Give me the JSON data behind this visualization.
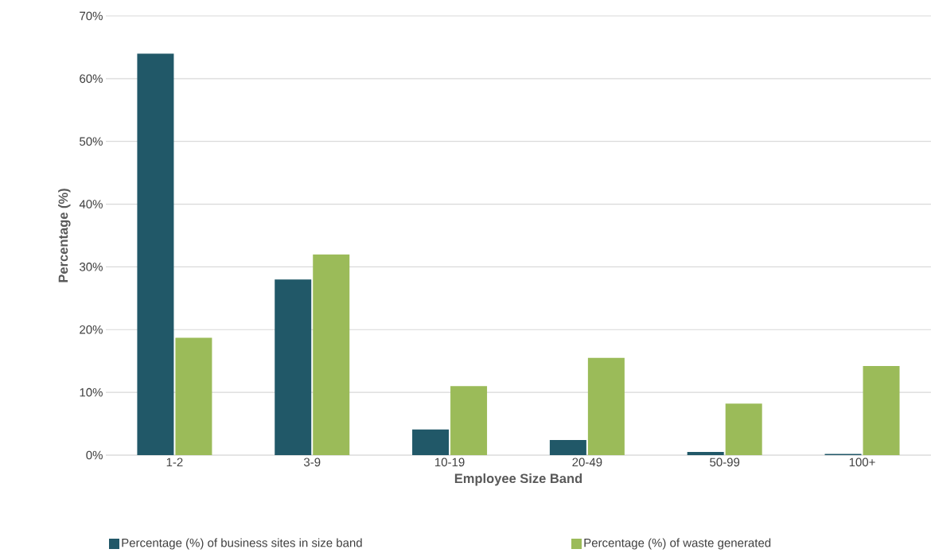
{
  "chart_data": {
    "type": "bar",
    "xlabel": "Employee Size Band",
    "ylabel": "Percentage (%)",
    "categories": [
      "1-2",
      "3-9",
      "10-19",
      "20-49",
      "50-99",
      "100+"
    ],
    "series": [
      {
        "name": "Percentage (%) of business sites in size band",
        "color": "#215868",
        "values": [
          64,
          28,
          4.1,
          2.4,
          0.5,
          0.2
        ]
      },
      {
        "name": "Percentage (%) of waste generated",
        "color": "#9bbb59",
        "values": [
          18.7,
          32,
          11,
          15.5,
          8.2,
          14.2
        ]
      }
    ],
    "ylim": [
      0,
      70
    ],
    "yticks": [
      {
        "value": 0,
        "label": "0%"
      },
      {
        "value": 10,
        "label": "10%"
      },
      {
        "value": 20,
        "label": "20%"
      },
      {
        "value": 30,
        "label": "30%"
      },
      {
        "value": 40,
        "label": "40%"
      },
      {
        "value": 50,
        "label": "50%"
      },
      {
        "value": 60,
        "label": "60%"
      },
      {
        "value": 70,
        "label": "70%"
      }
    ],
    "grid": "y",
    "legend": "bottom"
  }
}
